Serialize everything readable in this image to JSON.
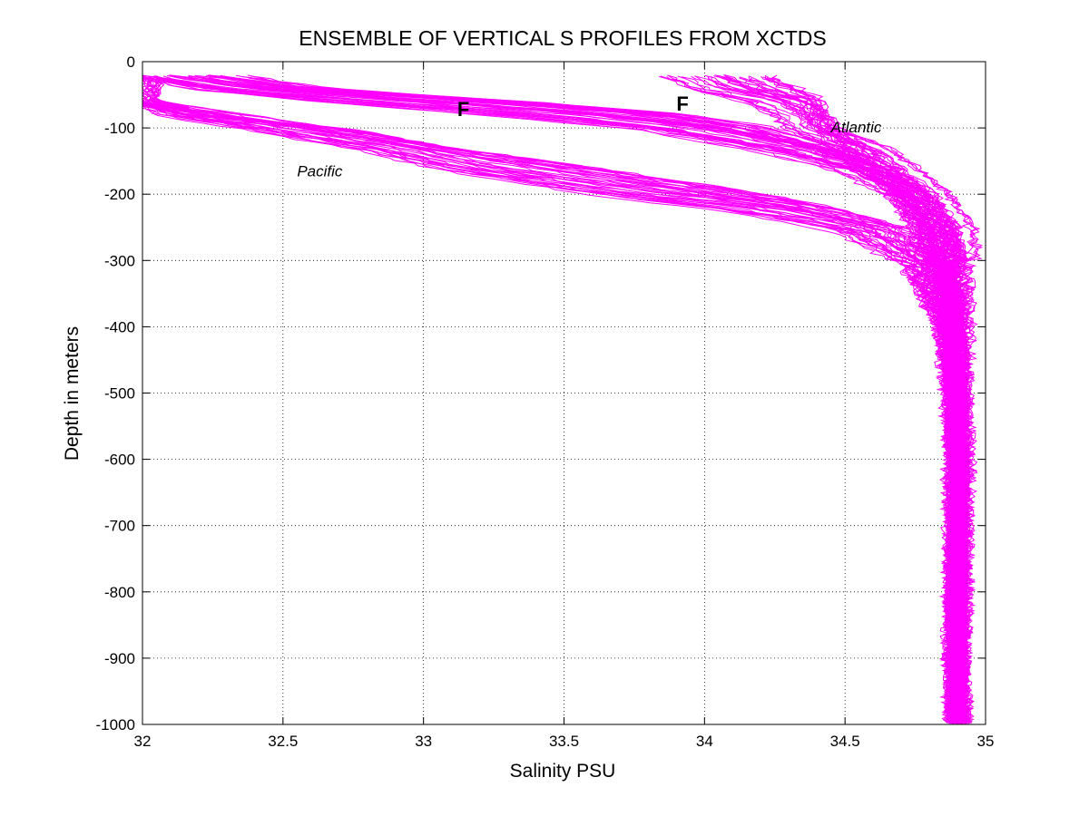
{
  "chart_data": {
    "type": "line",
    "title": "ENSEMBLE OF VERTICAL S PROFILES FROM XCTDS",
    "xlabel": "Salinity PSU",
    "ylabel": "Depth in meters",
    "xlim": [
      32,
      35
    ],
    "ylim": [
      -1000,
      0
    ],
    "xticks": [
      32,
      32.5,
      33,
      33.5,
      34,
      34.5,
      35
    ],
    "xtick_labels": [
      "32",
      "32.5",
      "33",
      "33.5",
      "34",
      "34.5",
      "35"
    ],
    "yticks": [
      0,
      -100,
      -200,
      -300,
      -400,
      -500,
      -600,
      -700,
      -800,
      -900,
      -1000
    ],
    "ytick_labels": [
      "0",
      "-100",
      "-200",
      "-300",
      "-400",
      "-500",
      "-600",
      "-700",
      "-800",
      "-900",
      "-1000"
    ],
    "grid": true,
    "line_color": "#ff00ff",
    "annotations": [
      {
        "text": "Atlantic",
        "x": 34.45,
        "y": -107,
        "style": "italic"
      },
      {
        "text": "Pacific",
        "x": 32.55,
        "y": -173,
        "style": "italic"
      },
      {
        "text": "F",
        "x": 33.12,
        "y": -82,
        "style": "bold"
      },
      {
        "text": "F",
        "x": 33.9,
        "y": -74,
        "style": "bold"
      }
    ],
    "series": [
      {
        "profile": "atlantic",
        "depths": [
          -20,
          -40,
          -60,
          -80,
          -100,
          -130,
          -160,
          -200,
          -250,
          -300,
          -400,
          -500,
          -600,
          -700,
          -800,
          -900,
          -1000
        ],
        "values": [
          34.1,
          34.2,
          34.35,
          34.4,
          34.45,
          34.55,
          34.65,
          34.75,
          34.85,
          34.88,
          34.9,
          34.9,
          34.91,
          34.9,
          34.9,
          34.9,
          34.9
        ]
      },
      {
        "profile": "atlantic",
        "depths": [
          -20,
          -40,
          -60,
          -80,
          -100,
          -130,
          -160,
          -200,
          -250,
          -300,
          -400,
          -500,
          -600,
          -700,
          -800,
          -900,
          -1000
        ],
        "values": [
          33.9,
          34.0,
          34.2,
          34.3,
          34.35,
          34.5,
          34.62,
          34.72,
          34.8,
          34.85,
          34.88,
          34.89,
          34.9,
          34.9,
          34.89,
          34.9,
          34.9
        ]
      },
      {
        "profile": "atlantic",
        "depths": [
          -20,
          -40,
          -60,
          -80,
          -100,
          -130,
          -160,
          -200,
          -250,
          -300,
          -400,
          -500,
          -600,
          -700,
          -800,
          -900,
          -1000
        ],
        "values": [
          34.0,
          34.1,
          34.3,
          34.38,
          34.4,
          34.6,
          34.7,
          34.82,
          34.9,
          34.92,
          34.93,
          34.92,
          34.93,
          34.92,
          34.92,
          34.91,
          34.92
        ]
      },
      {
        "profile": "atlantic",
        "depths": [
          -20,
          -40,
          -60,
          -80,
          -100,
          -130,
          -160,
          -200,
          -250,
          -300,
          -400,
          -500,
          -600,
          -700,
          -800,
          -900,
          -1000
        ],
        "values": [
          34.2,
          34.3,
          34.4,
          34.4,
          34.42,
          34.5,
          34.6,
          34.7,
          34.78,
          34.82,
          34.86,
          34.87,
          34.88,
          34.88,
          34.88,
          34.88,
          34.88
        ]
      },
      {
        "profile": "frontal",
        "depths": [
          -20,
          -40,
          -60,
          -80,
          -100,
          -130,
          -160,
          -200,
          -250,
          -300,
          -400,
          -500,
          -600,
          -700,
          -800,
          -900,
          -1000
        ],
        "values": [
          32.2,
          32.5,
          33.2,
          33.8,
          34.1,
          34.4,
          34.6,
          34.75,
          34.82,
          34.86,
          34.89,
          34.9,
          34.9,
          34.9,
          34.9,
          34.9,
          34.9
        ]
      },
      {
        "profile": "frontal",
        "depths": [
          -20,
          -40,
          -60,
          -80,
          -100,
          -130,
          -160,
          -200,
          -250,
          -300,
          -400,
          -500,
          -600,
          -700,
          -800,
          -900,
          -1000
        ],
        "values": [
          32.0,
          32.3,
          32.9,
          33.5,
          33.9,
          34.3,
          34.55,
          34.72,
          34.8,
          34.84,
          34.88,
          34.89,
          34.9,
          34.9,
          34.9,
          34.9,
          34.9
        ]
      },
      {
        "profile": "frontal",
        "depths": [
          -20,
          -40,
          -60,
          -80,
          -100,
          -130,
          -160,
          -200,
          -250,
          -300,
          -400,
          -500,
          -600,
          -700,
          -800,
          -900,
          -1000
        ],
        "values": [
          32.1,
          32.4,
          33.0,
          33.6,
          34.0,
          34.35,
          34.58,
          34.74,
          34.83,
          34.87,
          34.9,
          34.91,
          34.91,
          34.9,
          34.91,
          34.9,
          34.91
        ]
      },
      {
        "profile": "frontal",
        "depths": [
          -20,
          -40,
          -60,
          -80,
          -100,
          -130,
          -160,
          -200,
          -250,
          -300,
          -400,
          -500,
          -600,
          -700,
          -800,
          -900,
          -1000
        ],
        "values": [
          32.0,
          32.2,
          32.7,
          33.3,
          33.8,
          34.2,
          34.5,
          34.7,
          34.8,
          34.85,
          34.89,
          34.9,
          34.9,
          34.9,
          34.9,
          34.9,
          34.9
        ]
      },
      {
        "profile": "frontal",
        "depths": [
          -20,
          -40,
          -60,
          -80,
          -100,
          -130,
          -160,
          -200,
          -250,
          -300,
          -400,
          -500,
          -600,
          -700,
          -800,
          -900,
          -1000
        ],
        "values": [
          32.3,
          32.6,
          33.3,
          33.9,
          34.2,
          34.45,
          34.62,
          34.76,
          34.84,
          34.88,
          34.91,
          34.92,
          34.92,
          34.92,
          34.92,
          34.91,
          34.92
        ]
      },
      {
        "profile": "pacific",
        "depths": [
          -20,
          -40,
          -60,
          -80,
          -100,
          -130,
          -160,
          -200,
          -220,
          -250,
          -300,
          -400,
          -500,
          -600,
          -700,
          -800,
          -900,
          -1000
        ],
        "values": [
          32.0,
          32.0,
          32.0,
          32.2,
          32.5,
          32.9,
          33.2,
          33.8,
          34.2,
          34.55,
          34.75,
          34.85,
          34.88,
          34.89,
          34.89,
          34.89,
          34.88,
          34.89
        ]
      },
      {
        "profile": "pacific",
        "depths": [
          -20,
          -40,
          -60,
          -80,
          -100,
          -130,
          -160,
          -200,
          -220,
          -250,
          -300,
          -400,
          -500,
          -600,
          -700,
          -800,
          -900,
          -1000
        ],
        "values": [
          32.0,
          32.0,
          32.0,
          32.3,
          32.6,
          33.0,
          33.4,
          34.0,
          34.3,
          34.6,
          34.78,
          34.86,
          34.89,
          34.9,
          34.9,
          34.9,
          34.9,
          34.9
        ]
      },
      {
        "profile": "pacific",
        "depths": [
          -20,
          -40,
          -60,
          -80,
          -100,
          -130,
          -160,
          -200,
          -220,
          -250,
          -300,
          -400,
          -500,
          -600,
          -700,
          -800,
          -900,
          -1000
        ],
        "values": [
          32.0,
          32.0,
          32.0,
          32.1,
          32.4,
          32.8,
          33.1,
          33.7,
          34.1,
          34.5,
          34.72,
          34.84,
          34.87,
          34.88,
          34.88,
          34.88,
          34.88,
          34.88
        ]
      },
      {
        "profile": "pacific",
        "depths": [
          -20,
          -40,
          -60,
          -80,
          -100,
          -130,
          -160,
          -200,
          -220,
          -250,
          -300,
          -400,
          -500,
          -600,
          -700,
          -800,
          -900,
          -1000
        ],
        "values": [
          32.0,
          32.0,
          32.0,
          32.2,
          32.7,
          33.1,
          33.6,
          34.2,
          34.45,
          34.7,
          34.82,
          34.88,
          34.9,
          34.91,
          34.91,
          34.9,
          34.91,
          34.91
        ]
      }
    ]
  }
}
